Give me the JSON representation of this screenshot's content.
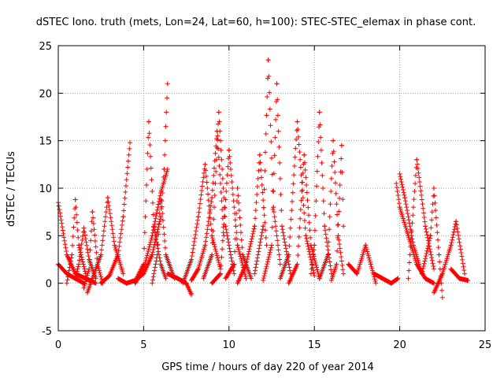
{
  "chart_data": {
    "type": "scatter",
    "title": "dSTEC Iono. truth (mets, Lon=24, Lat=60, h=100): STEC-STEC_elemax in phase cont.",
    "xlabel": "GPS time / hours of day 220 of year 2014",
    "ylabel": "dSTEC  / TECUs",
    "xlim": [
      0,
      25
    ],
    "ylim": [
      -5,
      25
    ],
    "x_ticks": [
      0,
      5,
      10,
      15,
      20,
      25
    ],
    "y_ticks": [
      -5,
      0,
      5,
      10,
      15,
      20,
      25
    ],
    "x_tick_labels": [
      "0",
      "5",
      "10",
      "15",
      "20",
      "25"
    ],
    "y_tick_labels": [
      "-5",
      "0",
      "5",
      "10",
      "15",
      "20",
      "25"
    ],
    "grid": true,
    "marker": "+",
    "series_color": "#ff0000",
    "arcs": [
      {
        "x": [
          0.0,
          0.5,
          1.0,
          1.6,
          2.2
        ],
        "y": [
          8.5,
          3.0,
          1.0,
          0.5,
          0.0
        ]
      },
      {
        "x": [
          0.0,
          0.5,
          1.0,
          1.5
        ],
        "y": [
          2.0,
          1.0,
          0.5,
          0.0
        ]
      },
      {
        "x": [
          0.5,
          0.8,
          1.0,
          1.2,
          1.6
        ],
        "y": [
          0.0,
          3.0,
          8.8,
          4.0,
          1.0
        ]
      },
      {
        "x": [
          1.0,
          1.2,
          1.5,
          1.8,
          2.2
        ],
        "y": [
          0.5,
          2.0,
          5.8,
          2.5,
          0.5
        ]
      },
      {
        "x": [
          1.7,
          2.0,
          2.5,
          2.9,
          3.3,
          3.8
        ],
        "y": [
          -1.0,
          0.5,
          3.0,
          9.0,
          4.0,
          1.0
        ]
      },
      {
        "x": [
          1.5,
          1.8,
          2.0,
          2.3,
          2.6
        ],
        "y": [
          -0.5,
          1.5,
          7.5,
          2.0,
          0.0
        ]
      },
      {
        "x": [
          2.5,
          3.0,
          3.5,
          3.8,
          4.2
        ],
        "y": [
          0.0,
          0.8,
          3.0,
          7.0,
          14.8
        ]
      },
      {
        "x": [
          3.5,
          4.0,
          4.5,
          5.0,
          5.5,
          6.0,
          6.2,
          6.4
        ],
        "y": [
          0.5,
          0.0,
          0.3,
          1.0,
          3.0,
          7.0,
          12.0,
          21.0
        ]
      },
      {
        "x": [
          4.5,
          5.0,
          5.5,
          6.0,
          6.4
        ],
        "y": [
          0.0,
          1.5,
          5.0,
          9.5,
          12.0
        ]
      },
      {
        "x": [
          4.5,
          5.0,
          5.3,
          5.6,
          6.0,
          6.3
        ],
        "y": [
          0.2,
          2.0,
          17.0,
          6.0,
          2.0,
          0.5
        ]
      },
      {
        "x": [
          5.5,
          5.8,
          6.0,
          6.3,
          6.8
        ],
        "y": [
          0.0,
          3.0,
          9.5,
          3.0,
          0.5
        ]
      },
      {
        "x": [
          6.4,
          7.0,
          7.5,
          7.8
        ],
        "y": [
          1.0,
          0.5,
          0.0,
          -1.2
        ]
      },
      {
        "x": [
          7.3,
          7.8,
          8.2,
          8.6,
          9.0,
          9.5
        ],
        "y": [
          0.0,
          2.5,
          7.0,
          12.5,
          5.0,
          1.5
        ]
      },
      {
        "x": [
          7.8,
          8.2,
          8.6,
          9.0,
          9.3,
          9.7
        ],
        "y": [
          0.3,
          1.5,
          4.0,
          9.0,
          16.0,
          5.0
        ]
      },
      {
        "x": [
          8.5,
          9.0,
          9.4,
          9.8,
          10.3
        ],
        "y": [
          0.5,
          3.0,
          18.0,
          6.0,
          1.0
        ]
      },
      {
        "x": [
          9.0,
          9.5,
          10.0,
          10.5,
          11.0
        ],
        "y": [
          0.0,
          1.0,
          14.0,
          4.0,
          0.5
        ]
      },
      {
        "x": [
          9.8,
          10.3,
          10.5,
          10.8,
          11.3
        ],
        "y": [
          0.5,
          2.0,
          10.0,
          3.0,
          0.5
        ]
      },
      {
        "x": [
          10.5,
          11.0,
          11.5,
          11.8,
          12.2
        ],
        "y": [
          0.0,
          2.0,
          6.0,
          13.5,
          4.0
        ]
      },
      {
        "x": [
          11.5,
          12.0,
          12.3,
          12.6,
          13.0
        ],
        "y": [
          1.0,
          6.0,
          23.5,
          8.0,
          2.0
        ]
      },
      {
        "x": [
          12.0,
          12.5,
          12.8,
          13.1,
          13.6
        ],
        "y": [
          0.3,
          4.0,
          21.0,
          6.0,
          1.0
        ]
      },
      {
        "x": [
          13.0,
          13.5,
          14.0,
          14.5,
          15.0
        ],
        "y": [
          0.5,
          3.0,
          17.0,
          5.0,
          0.8
        ]
      },
      {
        "x": [
          13.5,
          14.0,
          14.4,
          14.8,
          15.3
        ],
        "y": [
          0.0,
          2.0,
          13.5,
          4.0,
          0.5
        ]
      },
      {
        "x": [
          14.8,
          15.0,
          15.3,
          15.6,
          16.0
        ],
        "y": [
          1.0,
          4.0,
          18.0,
          6.0,
          1.0
        ]
      },
      {
        "x": [
          15.3,
          15.8,
          16.1,
          16.4,
          16.7
        ],
        "y": [
          0.5,
          3.0,
          15.0,
          5.0,
          1.0
        ]
      },
      {
        "x": [
          16.0,
          16.3,
          16.6,
          16.7
        ],
        "y": [
          0.3,
          2.0,
          14.5,
          6.0
        ]
      },
      {
        "x": [
          17.0,
          17.5,
          18.0,
          18.3,
          18.6
        ],
        "y": [
          2.0,
          1.0,
          4.0,
          2.0,
          0.0
        ]
      },
      {
        "x": [
          18.5,
          19.0,
          19.5,
          19.9
        ],
        "y": [
          1.0,
          0.5,
          0.0,
          0.5
        ]
      },
      {
        "x": [
          19.8,
          20.0,
          20.5,
          21.0,
          21.5,
          22.0
        ],
        "y": [
          10.5,
          8.0,
          5.0,
          2.0,
          0.5,
          0.0
        ]
      },
      {
        "x": [
          20.0,
          20.3,
          20.8,
          21.3
        ],
        "y": [
          11.5,
          9.0,
          4.0,
          1.0
        ]
      },
      {
        "x": [
          20.5,
          21.0,
          21.5,
          22.0
        ],
        "y": [
          0.5,
          13.0,
          6.0,
          1.5
        ]
      },
      {
        "x": [
          21.3,
          21.8,
          22.0,
          22.3,
          22.5
        ],
        "y": [
          1.0,
          5.0,
          10.0,
          3.0,
          -1.5
        ]
      },
      {
        "x": [
          22.0,
          22.5,
          23.0,
          23.3,
          23.8
        ],
        "y": [
          -1.0,
          1.0,
          4.0,
          6.5,
          1.0
        ]
      },
      {
        "x": [
          23.0,
          23.5,
          24.0
        ],
        "y": [
          1.5,
          0.5,
          0.3
        ]
      }
    ]
  }
}
